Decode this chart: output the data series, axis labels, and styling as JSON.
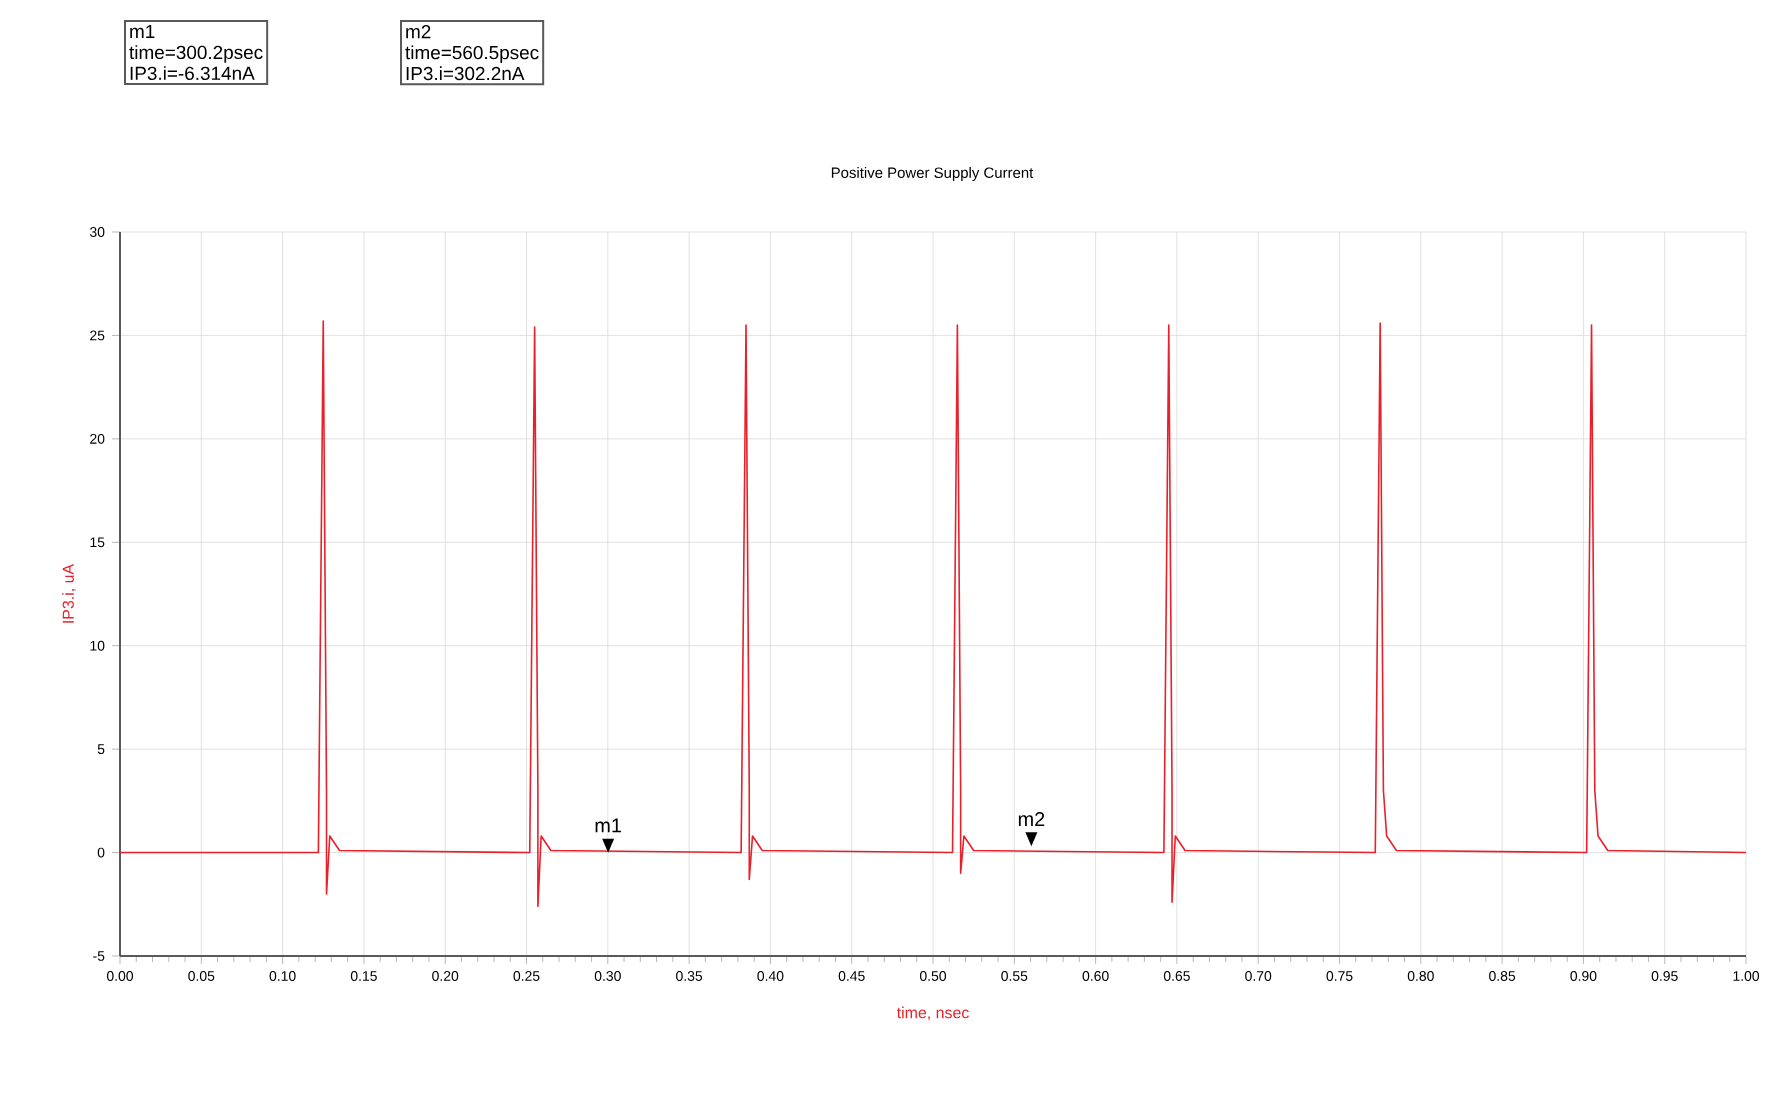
{
  "chart_data": {
    "type": "line",
    "title": "Positive Power Supply Current",
    "xlabel": "time, nsec",
    "ylabel": "IP3.i, uA",
    "x": [
      0,
      0.122,
      0.125,
      0.127,
      0.127,
      0.129,
      0.135,
      0.252,
      0.255,
      0.257,
      0.257,
      0.259,
      0.265,
      0.382,
      0.385,
      0.387,
      0.387,
      0.389,
      0.395,
      0.512,
      0.515,
      0.517,
      0.517,
      0.519,
      0.525,
      0.642,
      0.645,
      0.647,
      0.647,
      0.649,
      0.655,
      0.772,
      0.775,
      0.777,
      0.779,
      0.785,
      0.902,
      0.905,
      0.907,
      0.909,
      0.915,
      1.0
    ],
    "series": [
      {
        "color": "#e8202a",
        "values": [
          0,
          0,
          25.7,
          3,
          -2.0,
          0.8,
          0.1,
          0,
          25.4,
          3,
          -2.6,
          0.8,
          0.1,
          0,
          25.5,
          3,
          -1.3,
          0.8,
          0.1,
          0,
          25.5,
          3,
          -1.0,
          0.8,
          0.1,
          0,
          25.5,
          3,
          -2.4,
          0.8,
          0.1,
          0,
          25.6,
          3,
          0.8,
          0.1,
          0,
          25.5,
          3,
          0.8,
          0.1,
          0
        ]
      }
    ],
    "xlim": [
      0,
      1.0
    ],
    "ylim": [
      -5,
      30
    ],
    "xticks": [
      {
        "value": 0,
        "label": "0.00"
      },
      0.05,
      {
        "value": 0.1,
        "label": "0.10"
      },
      0.15,
      {
        "value": 0.2,
        "label": "0.20"
      },
      0.25,
      {
        "value": 0.3,
        "label": "0.30"
      },
      0.35,
      {
        "value": 0.4,
        "label": "0.40"
      },
      0.45,
      {
        "value": 0.5,
        "label": "0.50"
      },
      0.55,
      {
        "value": 0.6,
        "label": "0.60"
      },
      0.65,
      {
        "value": 0.7,
        "label": "0.70"
      },
      0.75,
      {
        "value": 0.8,
        "label": "0.80"
      },
      0.85,
      {
        "value": 0.9,
        "label": "0.90"
      },
      0.95,
      {
        "value": 1.0,
        "label": "1.00"
      }
    ],
    "yticks": [
      -5,
      0,
      5,
      10,
      15,
      20,
      25,
      30
    ],
    "grid": true,
    "marker": "none",
    "line_style": "solid",
    "annotations": [
      {
        "text": "m1",
        "x": 0.3002,
        "y": -0.006314
      },
      {
        "text": "m2",
        "x": 0.5605,
        "y": 0.3022
      },
      "m1",
      "time=300.2psec",
      "IP3.i=-6.314nA",
      "m2",
      "time=560.5psec",
      "IP3.i=302.2nA"
    ]
  }
}
